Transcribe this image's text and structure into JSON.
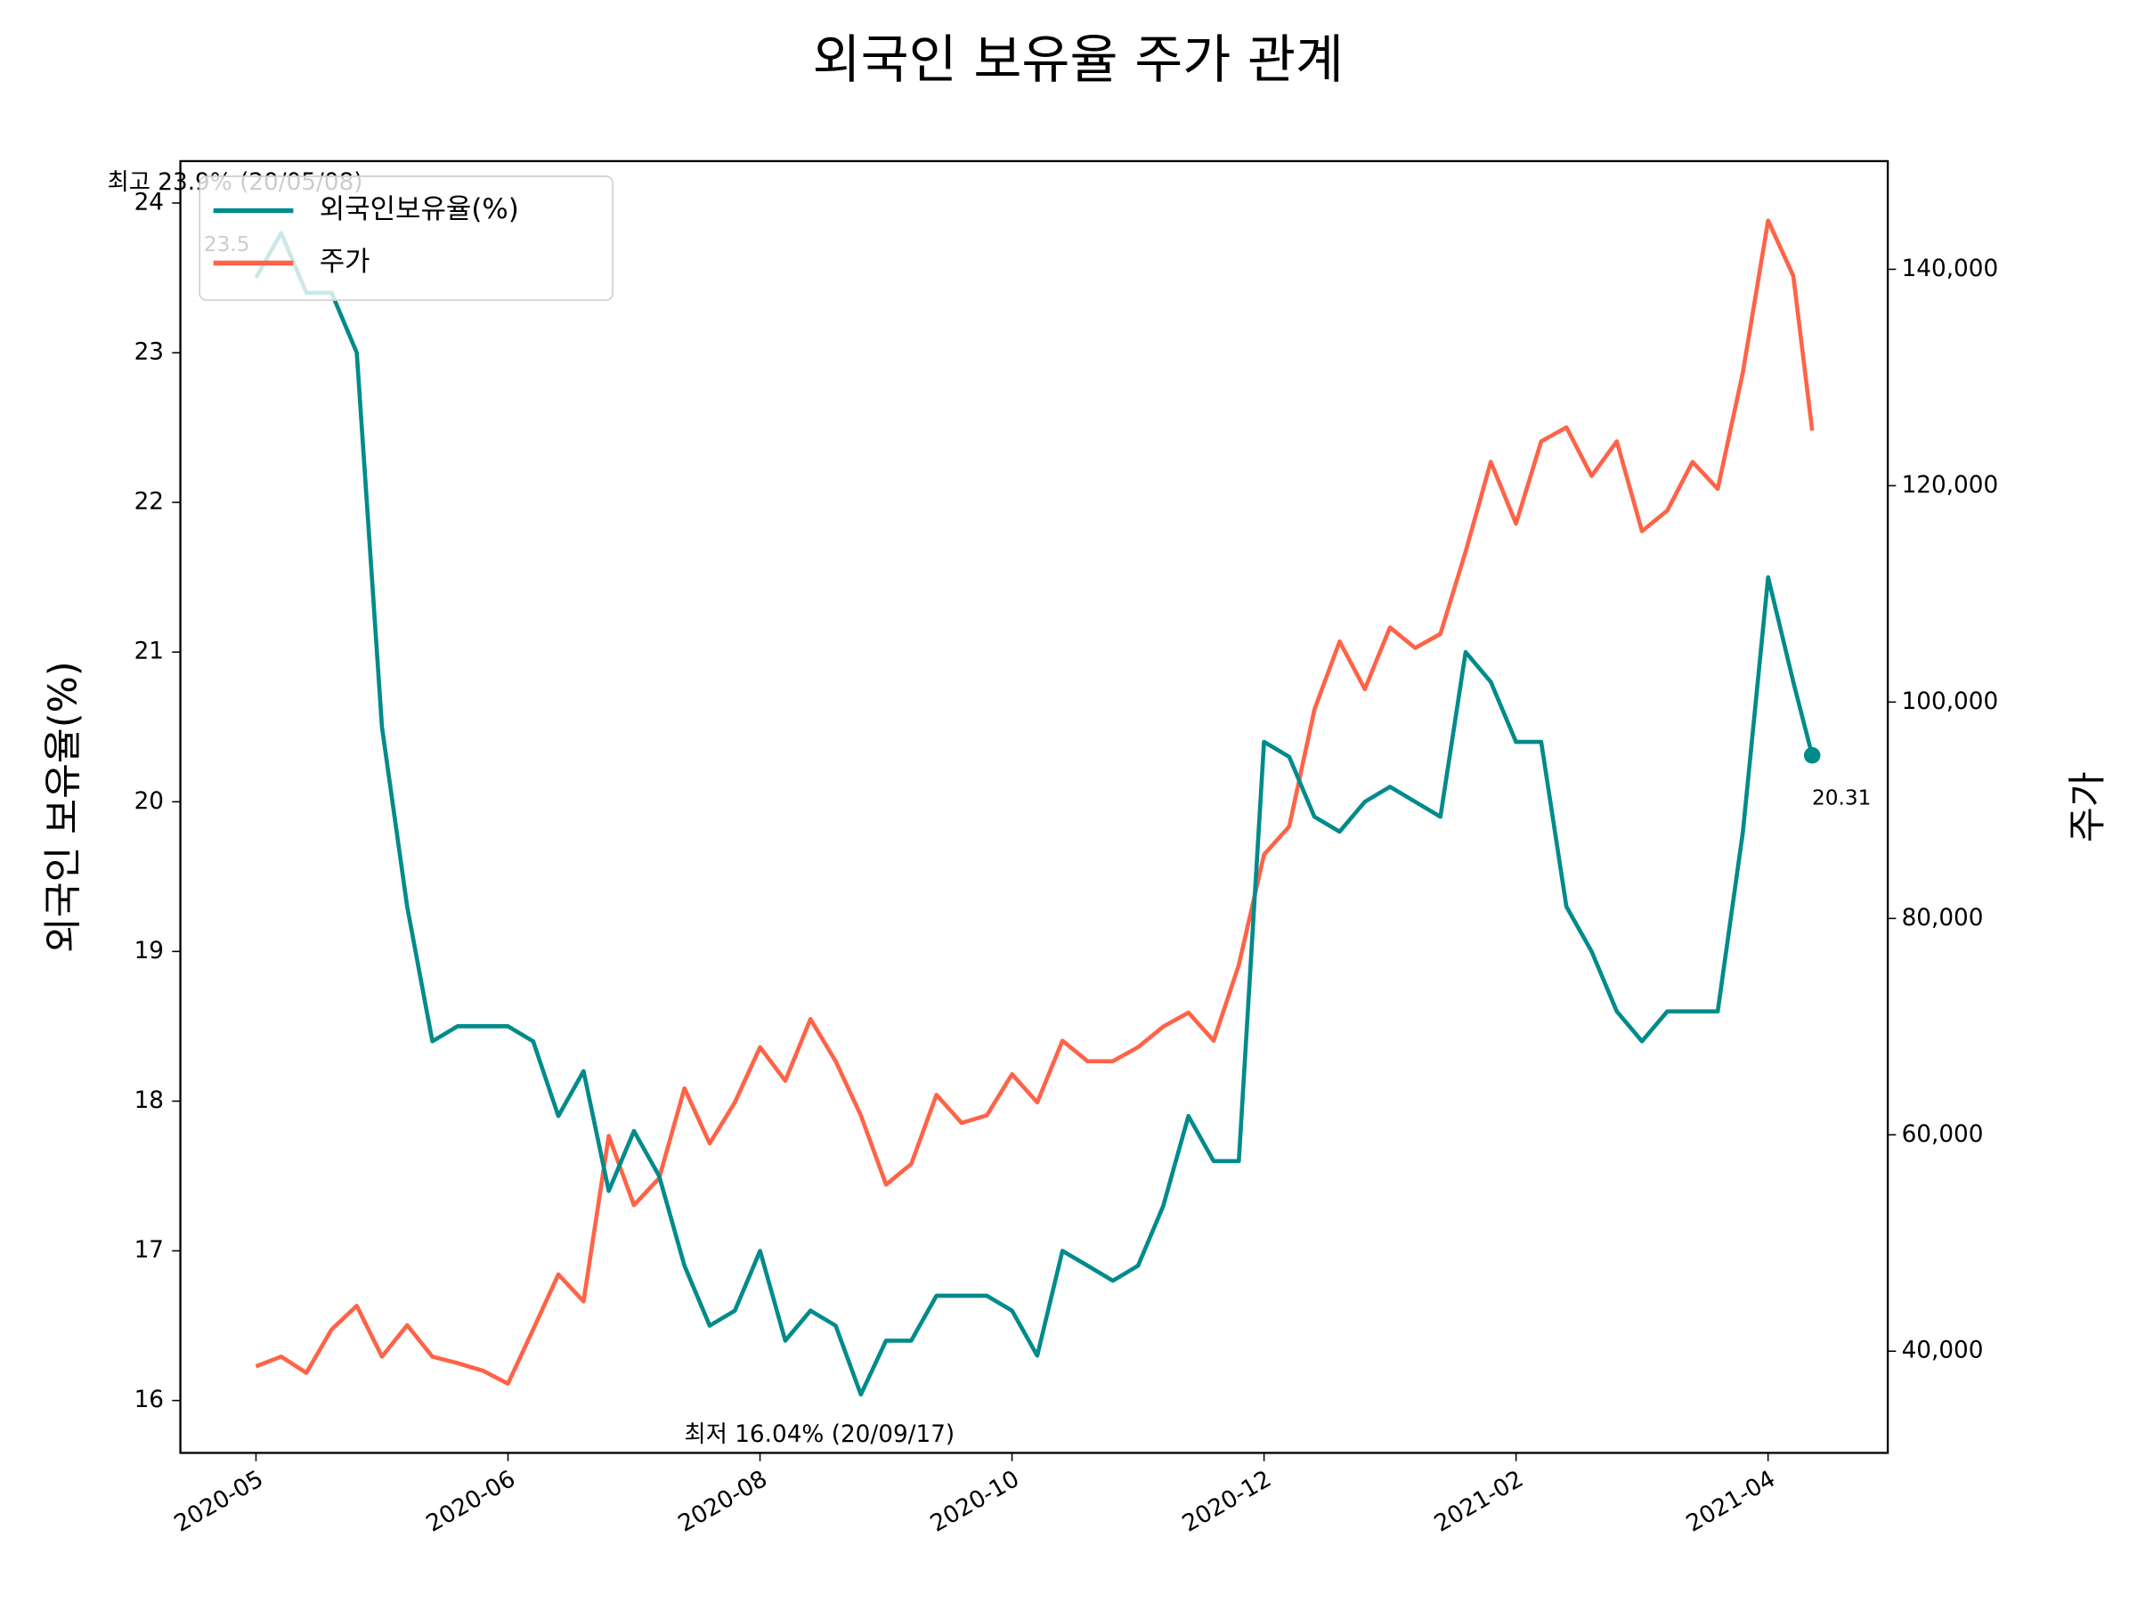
{
  "chart_data": {
    "type": "line",
    "title": "외국인 보유율 주가 관계",
    "y_label": "외국인 보유율(%)",
    "y2_label": "주가",
    "x": [
      0,
      2,
      4,
      6,
      8,
      10,
      12,
      14,
      16,
      18,
      20,
      22,
      24,
      26,
      28,
      30,
      32,
      34,
      36,
      38,
      40,
      42,
      44,
      46,
      48,
      50,
      52,
      54,
      56,
      58,
      60,
      62,
      64,
      66,
      68,
      70,
      72,
      74,
      76,
      78,
      80,
      82,
      84,
      86,
      88,
      90,
      92,
      94,
      96,
      98,
      100,
      102,
      104,
      106,
      108,
      110,
      112,
      114,
      116,
      118,
      120,
      122,
      123.5
    ],
    "xlim": [
      -6,
      129.5
    ],
    "xticks": [
      {
        "value": 0,
        "label": "2020-05"
      },
      {
        "value": 20,
        "label": "2020-06"
      },
      {
        "value": 40,
        "label": "2020-08"
      },
      {
        "value": 60,
        "label": "2020-10"
      },
      {
        "value": 80,
        "label": "2020-12"
      },
      {
        "value": 100,
        "label": "2021-02"
      },
      {
        "value": 120,
        "label": "2021-04"
      }
    ],
    "ylim": [
      15.65,
      24.28
    ],
    "yticks": [
      16,
      17,
      18,
      19,
      20,
      21,
      22,
      23,
      24
    ],
    "y2lim": [
      30600,
      150000
    ],
    "y2ticks": [
      {
        "value": 40000,
        "label": "40,000"
      },
      {
        "value": 60000,
        "label": "60,000"
      },
      {
        "value": 80000,
        "label": "80,000"
      },
      {
        "value": 100000,
        "label": "100,000"
      },
      {
        "value": 120000,
        "label": "120,000"
      },
      {
        "value": 140000,
        "label": "140,000"
      }
    ],
    "legend": "upper left",
    "series": [
      {
        "name": "외국인보유율(%)",
        "color": "#008b8b",
        "axis": "y",
        "values": [
          23.5,
          23.8,
          23.4,
          23.4,
          23.0,
          20.5,
          19.3,
          18.4,
          18.5,
          18.5,
          18.5,
          18.4,
          17.9,
          18.2,
          17.4,
          17.8,
          17.5,
          16.9,
          16.5,
          16.6,
          17.0,
          16.4,
          16.6,
          16.5,
          16.04,
          16.4,
          16.4,
          16.7,
          16.7,
          16.7,
          16.6,
          16.3,
          17.0,
          16.9,
          16.8,
          16.9,
          17.3,
          17.9,
          17.6,
          17.6,
          20.4,
          20.3,
          19.9,
          19.8,
          20.0,
          20.1,
          20.0,
          19.9,
          21.0,
          20.8,
          20.4,
          20.4,
          19.3,
          19.0,
          18.6,
          18.4,
          18.6,
          18.6,
          18.6,
          19.8,
          21.5,
          20.8,
          20.31
        ]
      },
      {
        "name": "주가",
        "color": "#ff6347",
        "axis": "y2",
        "values": [
          38600,
          39500,
          38000,
          42000,
          44200,
          39500,
          42400,
          39500,
          38900,
          38200,
          37000,
          42000,
          47100,
          44600,
          59900,
          53500,
          56000,
          64300,
          59200,
          63000,
          68100,
          65000,
          70700,
          66800,
          61800,
          55400,
          57300,
          63700,
          61100,
          61800,
          65600,
          63000,
          68700,
          66800,
          66800,
          68100,
          70000,
          71300,
          68700,
          75700,
          85900,
          88500,
          99300,
          105600,
          101200,
          106900,
          105000,
          106300,
          113900,
          122200,
          116500,
          124100,
          125400,
          120900,
          124100,
          115800,
          117700,
          122200,
          119700,
          130500,
          144500,
          139400,
          125100
        ]
      }
    ],
    "annotations": [
      {
        "text": "최고 23.9% (20/05/08)",
        "color": "#ff0000"
      },
      {
        "text": "23.5",
        "color": "#b2dfdf"
      },
      {
        "text": "최저 16.04% (20/09/17)",
        "color": "#0000ff"
      },
      {
        "text": "20.31",
        "color": "#008b8b"
      }
    ]
  }
}
